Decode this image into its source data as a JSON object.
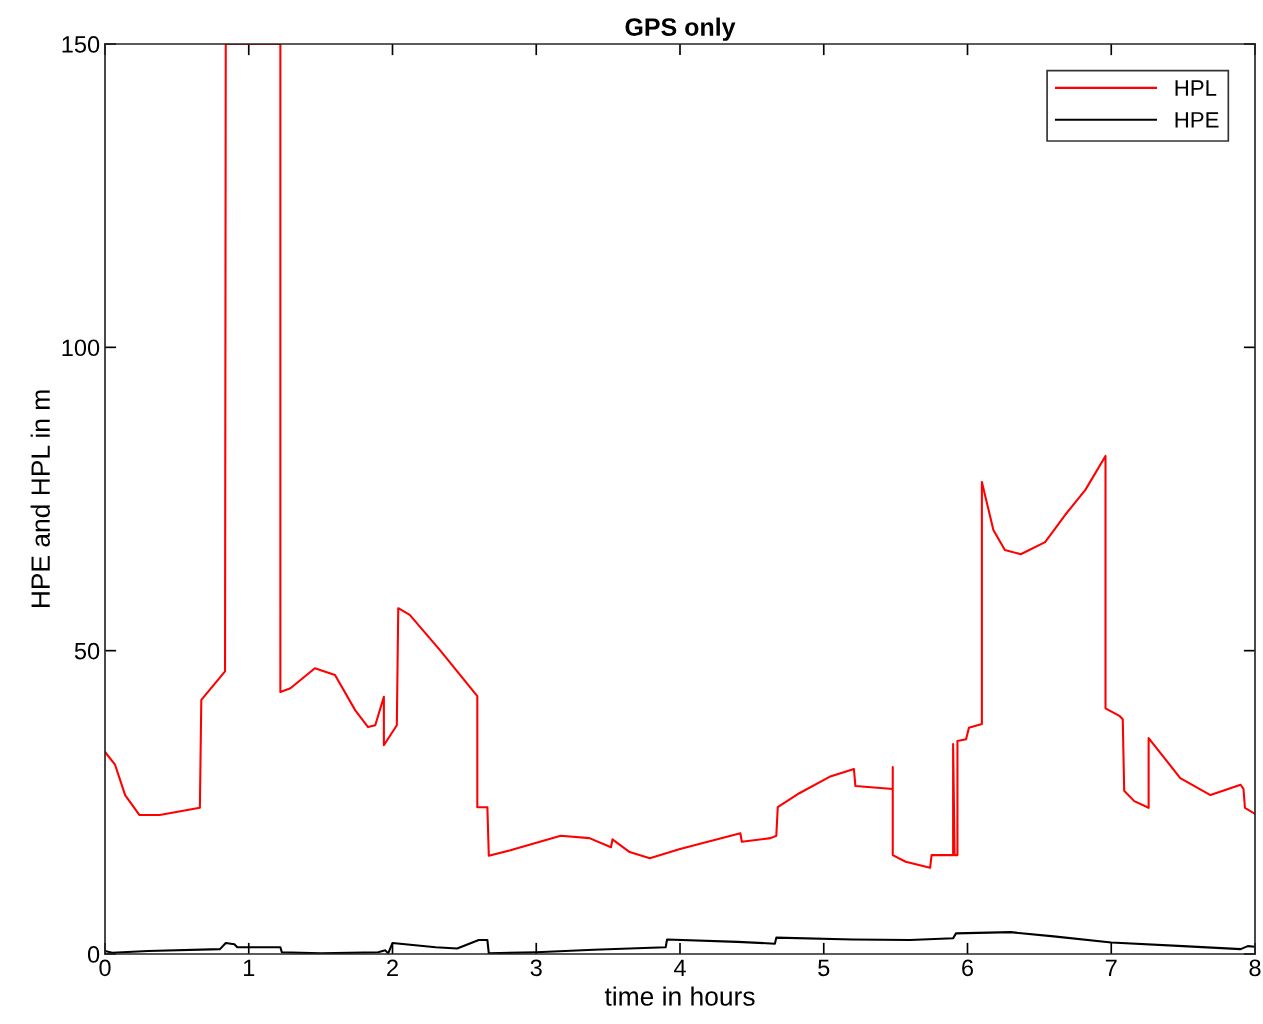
{
  "chart_data": {
    "type": "line",
    "title": "GPS only",
    "xlabel": "time in hours",
    "ylabel": "HPE and HPL in m",
    "xlim": [
      0,
      8
    ],
    "xticks": [
      0,
      1,
      2,
      3,
      4,
      5,
      6,
      7,
      8
    ],
    "ylim": [
      0,
      150
    ],
    "yticks": [
      0,
      50,
      100,
      150
    ],
    "grid": false,
    "legend": "top right",
    "line_style": "solid",
    "marker": "none",
    "series": [
      {
        "name": "HPL",
        "color": "#ff0000",
        "x": [
          0,
          0.07,
          0.14,
          0.24,
          0.38,
          0.66,
          0.67,
          0.835,
          0.84,
          1.22,
          1.22,
          1.29,
          1.46,
          1.6,
          1.74,
          1.83,
          1.88,
          1.94,
          1.94,
          2.03,
          2.04,
          2.12,
          2.33,
          2.47,
          2.59,
          2.59,
          2.66,
          2.67,
          2.82,
          3.17,
          3.37,
          3.52,
          3.53,
          3.65,
          3.79,
          4.0,
          4.42,
          4.43,
          4.63,
          4.67,
          4.68,
          4.83,
          5.04,
          5.21,
          5.22,
          5.48,
          5.48,
          5.48,
          5.57,
          5.74,
          5.75,
          5.9,
          5.9,
          5.91,
          5.93,
          5.93,
          5.99,
          6.01,
          6.1,
          6.1,
          6.18,
          6.26,
          6.37,
          6.54,
          6.68,
          6.82,
          6.96,
          6.96,
          7.06,
          7.08,
          7.09,
          7.16,
          7.26,
          7.26,
          7.48,
          7.69,
          7.9,
          7.92,
          7.93,
          8.0
        ],
        "values": [
          33.3,
          31.2,
          26.2,
          22.9,
          22.9,
          24.1,
          41.9,
          46.6,
          150,
          150,
          43.2,
          43.8,
          47.1,
          46.0,
          40.2,
          37.4,
          37.7,
          42.4,
          34.4,
          37.7,
          57.0,
          55.9,
          50.1,
          46.0,
          42.5,
          24.2,
          24.2,
          16.2,
          17.1,
          19.5,
          19.1,
          17.6,
          18.9,
          16.8,
          15.8,
          17.3,
          19.9,
          18.5,
          19.1,
          19.5,
          24.2,
          26.5,
          29.2,
          30.5,
          27.7,
          27.2,
          30.8,
          16.3,
          15.2,
          14.2,
          16.3,
          16.3,
          34.6,
          16.3,
          16.3,
          35.1,
          35.4,
          37.3,
          37.9,
          77.8,
          69.9,
          66.6,
          65.9,
          67.9,
          72.4,
          76.5,
          82.1,
          40.5,
          39.2,
          38.7,
          26.9,
          25.2,
          24.1,
          35.6,
          29.0,
          26.2,
          27.9,
          27.2,
          24.1,
          23.1
        ]
      },
      {
        "name": "HPE",
        "color": "#000000",
        "x": [
          0,
          0.05,
          0.3,
          0.8,
          0.84,
          0.9,
          0.92,
          1.22,
          1.23,
          1.5,
          1.9,
          1.95,
          1.97,
          2.0,
          2.3,
          2.45,
          2.6,
          2.66,
          2.67,
          3.0,
          3.4,
          3.9,
          3.91,
          4.4,
          4.66,
          4.67,
          5.2,
          5.6,
          5.9,
          5.92,
          6.3,
          6.6,
          7.0,
          7.5,
          7.9,
          7.95,
          8.0
        ],
        "values": [
          0.5,
          0.2,
          0.5,
          0.8,
          1.8,
          1.6,
          1.1,
          1.1,
          0.3,
          0.1,
          0.3,
          0.6,
          0.1,
          1.8,
          1.1,
          0.9,
          2.3,
          2.3,
          0.1,
          0.3,
          0.7,
          1.1,
          2.4,
          2.0,
          1.7,
          2.7,
          2.4,
          2.3,
          2.6,
          3.4,
          3.6,
          2.9,
          1.9,
          1.3,
          0.8,
          1.3,
          1.2
        ]
      }
    ]
  }
}
